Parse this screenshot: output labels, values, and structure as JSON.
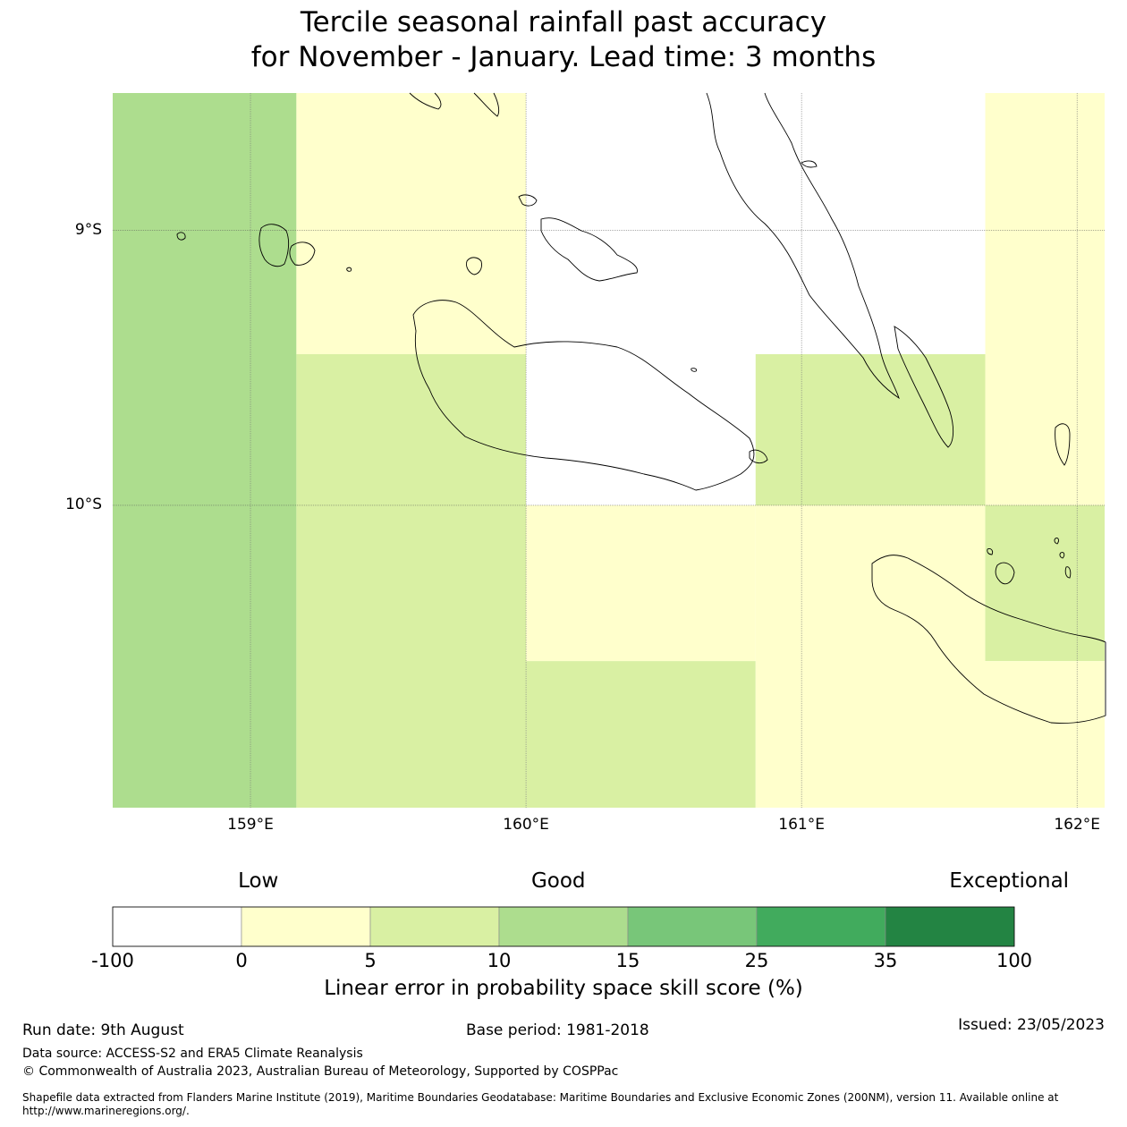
{
  "title": {
    "line1": "Tercile seasonal rainfall past accuracy",
    "line2": "for November - January. Lead time: 3 months"
  },
  "map": {
    "lon_range": [
      158.5,
      162.1
    ],
    "lat_range": [
      -11.1,
      -8.5
    ],
    "lat_ticks": [
      {
        "value": -9,
        "label": "9°S"
      },
      {
        "value": -10,
        "label": "10°S"
      }
    ],
    "lon_ticks": [
      {
        "value": 159,
        "label": "159°E"
      },
      {
        "value": 160,
        "label": "160°E"
      },
      {
        "value": 161,
        "label": "161°E"
      },
      {
        "value": 162,
        "label": "162°E"
      }
    ],
    "grid_cells": [
      {
        "lon": [
          158.5,
          159.1667
        ],
        "lat": [
          -11.1,
          -8.5
        ],
        "category": 3
      },
      {
        "lon": [
          159.1667,
          160.0
        ],
        "lat": [
          -9.45,
          -8.5
        ],
        "category": 1
      },
      {
        "lon": [
          159.1667,
          160.0
        ],
        "lat": [
          -11.1,
          -9.45
        ],
        "category": 2
      },
      {
        "lon": [
          160.0,
          160.8333
        ],
        "lat": [
          -10.0,
          -8.5
        ],
        "category": 0
      },
      {
        "lon": [
          160.0,
          160.8333
        ],
        "lat": [
          -10.5667,
          -10.0
        ],
        "category": 1
      },
      {
        "lon": [
          160.0,
          160.8333
        ],
        "lat": [
          -11.1,
          -10.5667
        ],
        "category": 2
      },
      {
        "lon": [
          160.8333,
          161.6667
        ],
        "lat": [
          -9.45,
          -8.5
        ],
        "category": 0
      },
      {
        "lon": [
          160.8333,
          161.6667
        ],
        "lat": [
          -10.0,
          -9.45
        ],
        "category": 2
      },
      {
        "lon": [
          160.8333,
          161.6667
        ],
        "lat": [
          -11.1,
          -10.0
        ],
        "category": 1
      },
      {
        "lon": [
          161.6667,
          162.1
        ],
        "lat": [
          -10.0,
          -8.5
        ],
        "category": 1
      },
      {
        "lon": [
          161.6667,
          162.1
        ],
        "lat": [
          -10.5667,
          -10.0
        ],
        "category": 2
      },
      {
        "lon": [
          161.6667,
          162.1
        ],
        "lat": [
          -11.1,
          -10.5667
        ],
        "category": 1
      }
    ]
  },
  "colorbar": {
    "category_labels": [
      "Low",
      "Good",
      "Exceptional"
    ],
    "colors": [
      "#ffffff",
      "#ffffcc",
      "#d9f0a3",
      "#addd8e",
      "#78c679",
      "#41ab5d",
      "#238443"
    ],
    "ticks": [
      "-100",
      "0",
      "5",
      "10",
      "15",
      "25",
      "35",
      "100"
    ],
    "label": "Linear error in probability space skill score (%)"
  },
  "footer": {
    "run_date": "Run date: 9th August",
    "base_period": "Base period: 1981-2018",
    "issued": "Issued: 23/05/2023",
    "data_source": "Data source: ACCESS-S2 and ERA5 Climate Reanalysis",
    "copyright": "© Commonwealth of Australia 2023, Australian Bureau of Meteorology, Supported by COSPPac",
    "shapefile": "Shapefile data extracted from Flanders Marine Institute (2019), Maritime Boundaries Geodatabase: Maritime Boundaries and Exclusive Economic Zones (200NM), version 11. Available online at http://www.marineregions.org/."
  }
}
